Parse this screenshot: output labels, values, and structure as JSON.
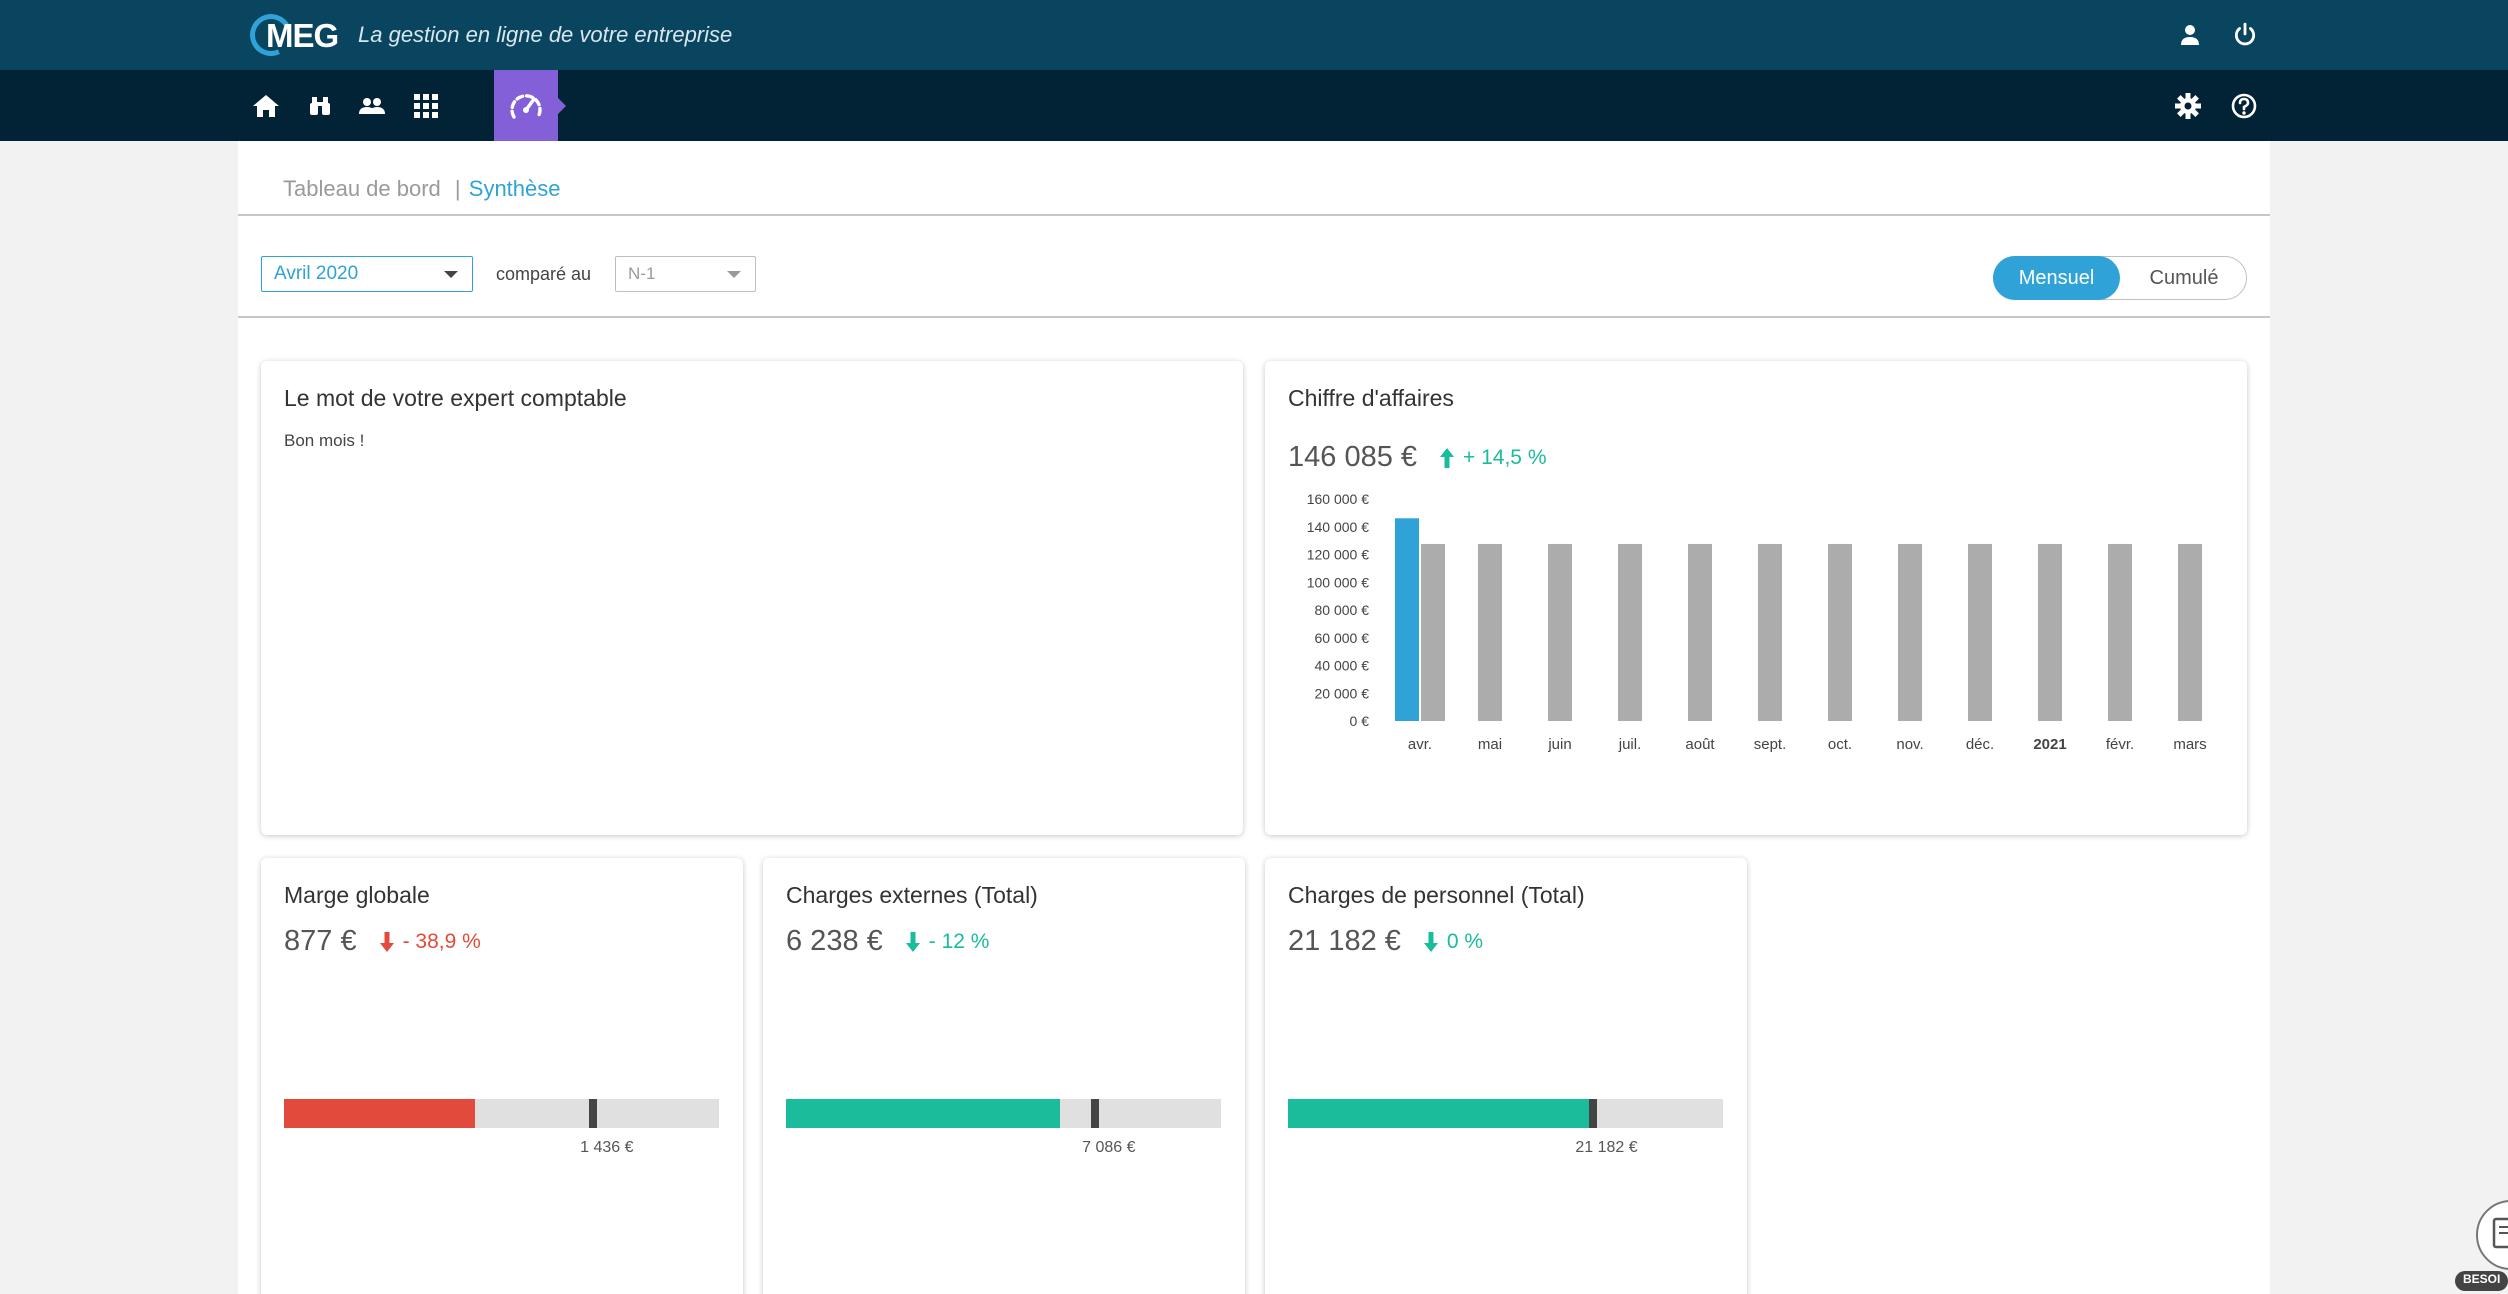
{
  "app": {
    "logo_text": "MEG",
    "tagline": "La gestion en ligne de votre entreprise"
  },
  "icons": {
    "top": [
      "user-icon",
      "power-icon"
    ],
    "nav": [
      "home-icon",
      "binoculars-icon",
      "users-icon",
      "grid-icon",
      "dashboard-gauge-icon"
    ],
    "nav_right": [
      "gear-icon",
      "help-icon"
    ]
  },
  "breadcrumb": {
    "root": "Tableau de bord",
    "separator": "|",
    "current": "Synthèse"
  },
  "filters": {
    "period": "Avril 2020",
    "compare_label": "comparé au",
    "compare_value": "N-1"
  },
  "view_toggle": {
    "options": [
      "Mensuel",
      "Cumulé"
    ],
    "selected": "Mensuel"
  },
  "expert_card": {
    "title": "Le mot de votre expert comptable",
    "message": "Bon mois !"
  },
  "revenue_card": {
    "title": "Chiffre d'affaires",
    "value": "146 085 €",
    "delta": "+ 14,5 %",
    "delta_direction": "up"
  },
  "chart_data": {
    "type": "bar",
    "categories": [
      "avr.",
      "mai",
      "juin",
      "juil.",
      "août",
      "sept.",
      "oct.",
      "nov.",
      "déc.",
      "2021",
      "févr.",
      "mars"
    ],
    "bold_categories": [
      "2021"
    ],
    "series": [
      {
        "values": [
          146085,
          null,
          null,
          null,
          null,
          null,
          null,
          null,
          null,
          null,
          null,
          null
        ],
        "color": "#2fa3d8"
      },
      {
        "values": [
          127600,
          127600,
          127600,
          127600,
          127600,
          127600,
          127600,
          127600,
          127600,
          127600,
          127600,
          127600
        ],
        "color": "#acacac"
      }
    ],
    "ylim": [
      0,
      160000
    ],
    "yticks": [
      "0 €",
      "20 000 €",
      "40 000 €",
      "60 000 €",
      "80 000 €",
      "100 000 €",
      "120 000 €",
      "140 000 €",
      "160 000 €"
    ],
    "title": "",
    "xlabel": "",
    "ylabel": "",
    "grid": false
  },
  "kpi_cards": [
    {
      "title": "Marge globale",
      "value": "877 €",
      "delta": "- 38,9 %",
      "delta_direction": "down",
      "delta_color": "#e24a3b",
      "fill_color": "#e24a3b",
      "fill_fraction": 0.44,
      "marker_fraction": 0.71,
      "reference": "1 436 €"
    },
    {
      "title": "Charges externes (Total)",
      "value": "6 238 €",
      "delta": "- 12 %",
      "delta_direction": "down",
      "delta_color": "#1bbc9b",
      "fill_color": "#1bbc9b",
      "fill_fraction": 0.63,
      "marker_fraction": 0.71,
      "reference": "7 086 €"
    },
    {
      "title": "Charges de personnel (Total)",
      "value": "21 182 €",
      "delta": "0 %",
      "delta_direction": "down",
      "delta_color": "#1bbc9b",
      "fill_color": "#1bbc9b",
      "fill_fraction": 0.7,
      "marker_fraction": 0.7,
      "reference": "21 182 €"
    }
  ],
  "help_badge": {
    "label": "BESOI"
  },
  "colors": {
    "topbar": "#0a4560",
    "navbar": "#022236",
    "accent": "#2fa3d8",
    "nav_active": "#8460d8",
    "up": "#1bbc9b",
    "down_bad": "#e24a3b"
  }
}
